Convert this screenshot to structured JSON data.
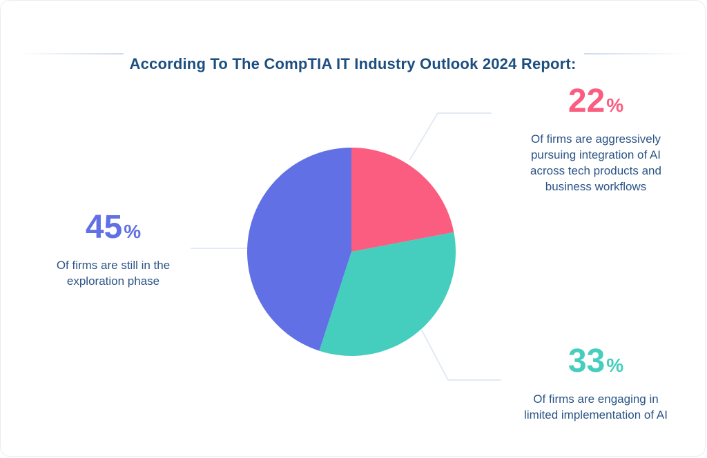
{
  "page": {
    "title": "According To The CompTIA IT Industry Outlook 2024 Report:"
  },
  "colors": {
    "title_text": "#1d4e80",
    "body_text": "#2b5486",
    "pink": "#fa5d7f",
    "teal": "#45cebd",
    "blue": "#6170e4",
    "connector": "#e3eaf2",
    "title_line": "#cddbea",
    "card_border": "#e8edf2"
  },
  "chart_data": {
    "type": "pie",
    "title": "According To The CompTIA IT Industry Outlook 2024 Report:",
    "start_angle": "12 o'clock, clockwise",
    "legend_position": "none (callout labels with connector lines)",
    "slices": [
      {
        "label": "Of firms are aggressively pursuing integration of AI across tech products and business workflows",
        "value": 22,
        "color": "#fa5d7f"
      },
      {
        "label": "Of firms are engaging in limited implementation of AI",
        "value": 33,
        "color": "#45cebd"
      },
      {
        "label": "Of firms are still in the exploration phase",
        "value": 45,
        "color": "#6170e4"
      }
    ]
  },
  "stats": {
    "aggressive": {
      "value": "22",
      "unit": "%",
      "description": "Of firms are aggressively\npursuing integration of AI\nacross tech products and\nbusiness workflows"
    },
    "exploration": {
      "value": "45",
      "unit": "%",
      "description": "Of firms are still in the\nexploration phase"
    },
    "limited": {
      "value": "33",
      "unit": "%",
      "description": "Of firms are engaging in\nlimited implementation of AI"
    }
  }
}
